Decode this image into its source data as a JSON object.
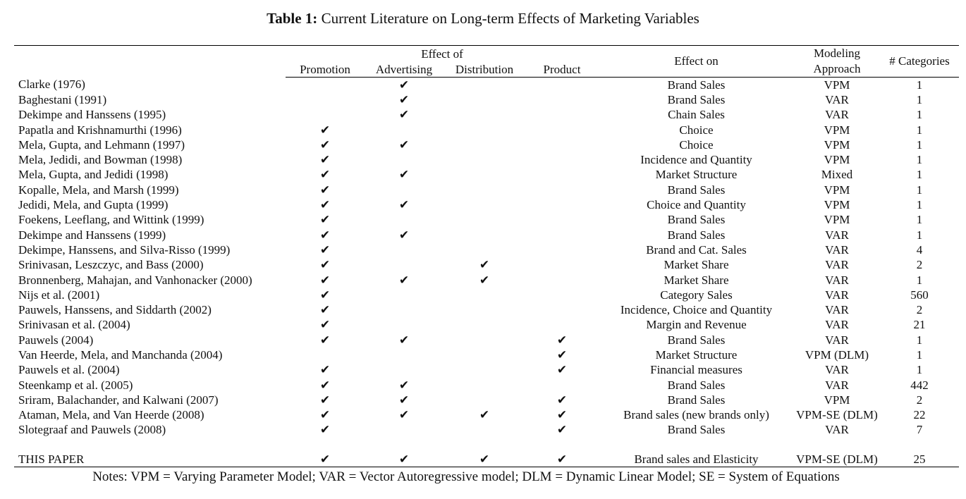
{
  "caption": {
    "label": "Table 1:",
    "text": " Current Literature on Long-term Effects of Marketing Variables"
  },
  "header": {
    "effect_of": "Effect of",
    "promotion": "Promotion",
    "advertising": "Advertising",
    "distribution": "Distribution",
    "product": "Product",
    "effect_on": "Effect on",
    "modeling_line1": "Modeling",
    "modeling_line2": "Approach",
    "categories": "# Categories"
  },
  "check_glyph": "✔",
  "rows": [
    {
      "study": "Clarke (1976)",
      "promotion": false,
      "advertising": true,
      "distribution": false,
      "product": false,
      "effect_on": "Brand Sales",
      "approach": "VPM",
      "categories": "1"
    },
    {
      "study": "Baghestani (1991)",
      "promotion": false,
      "advertising": true,
      "distribution": false,
      "product": false,
      "effect_on": "Brand Sales",
      "approach": "VAR",
      "categories": "1"
    },
    {
      "study": "Dekimpe and Hanssens (1995)",
      "promotion": false,
      "advertising": true,
      "distribution": false,
      "product": false,
      "effect_on": "Chain Sales",
      "approach": "VAR",
      "categories": "1"
    },
    {
      "study": "Papatla and Krishnamurthi (1996)",
      "promotion": true,
      "advertising": false,
      "distribution": false,
      "product": false,
      "effect_on": "Choice",
      "approach": "VPM",
      "categories": "1"
    },
    {
      "study": "Mela, Gupta, and Lehmann (1997)",
      "promotion": true,
      "advertising": true,
      "distribution": false,
      "product": false,
      "effect_on": "Choice",
      "approach": "VPM",
      "categories": "1"
    },
    {
      "study": "Mela, Jedidi, and Bowman (1998)",
      "promotion": true,
      "advertising": false,
      "distribution": false,
      "product": false,
      "effect_on": "Incidence and Quantity",
      "approach": "VPM",
      "categories": "1"
    },
    {
      "study": "Mela, Gupta, and Jedidi (1998)",
      "promotion": true,
      "advertising": true,
      "distribution": false,
      "product": false,
      "effect_on": "Market Structure",
      "approach": "Mixed",
      "categories": "1"
    },
    {
      "study": "Kopalle, Mela, and Marsh (1999)",
      "promotion": true,
      "advertising": false,
      "distribution": false,
      "product": false,
      "effect_on": "Brand Sales",
      "approach": "VPM",
      "categories": "1"
    },
    {
      "study": "Jedidi, Mela, and Gupta (1999)",
      "promotion": true,
      "advertising": true,
      "distribution": false,
      "product": false,
      "effect_on": "Choice and Quantity",
      "approach": "VPM",
      "categories": "1"
    },
    {
      "study": "Foekens, Leeflang, and Wittink (1999)",
      "promotion": true,
      "advertising": false,
      "distribution": false,
      "product": false,
      "effect_on": "Brand Sales",
      "approach": "VPM",
      "categories": "1"
    },
    {
      "study": "Dekimpe and Hanssens (1999)",
      "promotion": true,
      "advertising": true,
      "distribution": false,
      "product": false,
      "effect_on": "Brand Sales",
      "approach": "VAR",
      "categories": "1"
    },
    {
      "study": "Dekimpe, Hanssens, and Silva-Risso (1999)",
      "promotion": true,
      "advertising": false,
      "distribution": false,
      "product": false,
      "effect_on": "Brand and Cat. Sales",
      "approach": "VAR",
      "categories": "4"
    },
    {
      "study": "Srinivasan, Leszczyc, and Bass (2000)",
      "promotion": true,
      "advertising": false,
      "distribution": true,
      "product": false,
      "effect_on": "Market Share",
      "approach": "VAR",
      "categories": "2"
    },
    {
      "study": "Bronnenberg, Mahajan, and Vanhonacker (2000)",
      "promotion": true,
      "advertising": true,
      "distribution": true,
      "product": false,
      "effect_on": "Market Share",
      "approach": "VAR",
      "categories": "1"
    },
    {
      "study": "Nijs et al. (2001)",
      "promotion": true,
      "advertising": false,
      "distribution": false,
      "product": false,
      "effect_on": "Category Sales",
      "approach": "VAR",
      "categories": "560"
    },
    {
      "study": "Pauwels, Hanssens, and Siddarth (2002)",
      "promotion": true,
      "advertising": false,
      "distribution": false,
      "product": false,
      "effect_on": "Incidence, Choice and Quantity",
      "approach": "VAR",
      "categories": "2"
    },
    {
      "study": "Srinivasan et al. (2004)",
      "promotion": true,
      "advertising": false,
      "distribution": false,
      "product": false,
      "effect_on": "Margin and Revenue",
      "approach": "VAR",
      "categories": "21"
    },
    {
      "study": "Pauwels (2004)",
      "promotion": true,
      "advertising": true,
      "distribution": false,
      "product": true,
      "effect_on": "Brand Sales",
      "approach": "VAR",
      "categories": "1"
    },
    {
      "study": "Van Heerde, Mela, and Manchanda (2004)",
      "promotion": false,
      "advertising": false,
      "distribution": false,
      "product": true,
      "effect_on": "Market Structure",
      "approach": "VPM (DLM)",
      "categories": "1"
    },
    {
      "study": "Pauwels et al. (2004)",
      "promotion": true,
      "advertising": false,
      "distribution": false,
      "product": true,
      "effect_on": "Financial measures",
      "approach": "VAR",
      "categories": "1"
    },
    {
      "study": "Steenkamp et al. (2005)",
      "promotion": true,
      "advertising": true,
      "distribution": false,
      "product": false,
      "effect_on": "Brand Sales",
      "approach": "VAR",
      "categories": "442"
    },
    {
      "study": "Sriram, Balachander, and Kalwani (2007)",
      "promotion": true,
      "advertising": true,
      "distribution": false,
      "product": true,
      "effect_on": "Brand Sales",
      "approach": "VPM",
      "categories": "2"
    },
    {
      "study": "Ataman, Mela, and Van Heerde (2008)",
      "promotion": true,
      "advertising": true,
      "distribution": true,
      "product": true,
      "effect_on": "Brand sales (new brands only)",
      "approach": "VPM-SE (DLM)",
      "categories": "22"
    },
    {
      "study": "Slotegraaf and Pauwels (2008)",
      "promotion": true,
      "advertising": false,
      "distribution": false,
      "product": true,
      "effect_on": "Brand Sales",
      "approach": "VAR",
      "categories": "7"
    }
  ],
  "final_row": {
    "study": "THIS PAPER",
    "promotion": true,
    "advertising": true,
    "distribution": true,
    "product": true,
    "effect_on": "Brand sales and Elasticity",
    "approach": "VPM-SE (DLM)",
    "categories": "25"
  },
  "notes": "Notes: VPM = Varying Parameter Model; VAR = Vector Autoregressive model; DLM = Dynamic Linear Model; SE = System of Equations"
}
